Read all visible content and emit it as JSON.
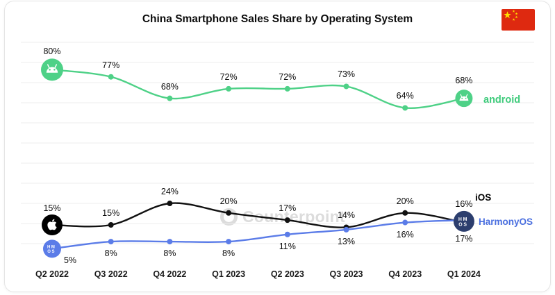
{
  "title": "China Smartphone Sales Share by Operating System",
  "flag": {
    "name": "china-flag"
  },
  "watermark": {
    "text": "Counterpoint"
  },
  "icons": {
    "android_badge": "android-robot",
    "apple_badge": "apple-logo",
    "harmonyos_badge_top": "HM",
    "harmonyos_badge_bottom": "OS"
  },
  "chart_data": {
    "type": "line",
    "categories": [
      "Q2 2022",
      "Q3 2022",
      "Q4 2022",
      "Q1 2023",
      "Q2 2023",
      "Q3 2023",
      "Q4 2023",
      "Q1 2024"
    ],
    "series": [
      {
        "name": "android",
        "color": "#4ed187",
        "values": [
          80,
          77,
          68,
          72,
          72,
          73,
          64,
          68
        ],
        "label_side": "above"
      },
      {
        "name": "iOS",
        "color": "#111111",
        "values": [
          15,
          15,
          24,
          20,
          17,
          14,
          20,
          16
        ],
        "label_side": "above"
      },
      {
        "name": "HarmonyOS",
        "color": "#5b7ce8",
        "values": [
          5,
          8,
          8,
          8,
          11,
          13,
          16,
          17
        ],
        "label_side": "below"
      }
    ],
    "ylim": [
      0,
      88
    ],
    "grid": true,
    "legend_position": "right-inline",
    "unit": "%"
  }
}
